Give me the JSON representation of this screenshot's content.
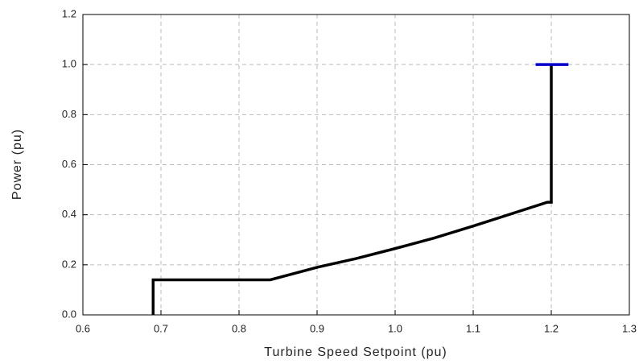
{
  "chart_data": {
    "type": "line",
    "xlabel": "Turbine Speed Setpoint (pu)",
    "ylabel": "Power (pu)",
    "xlim": [
      0.6,
      1.3
    ],
    "ylim": [
      0,
      1.2
    ],
    "xticks": [
      0.6,
      0.7,
      0.8,
      0.9,
      {
        "value": 1,
        "label": "1.0"
      },
      1.1,
      1.2,
      1.3
    ],
    "yticks": [
      {
        "value": 0,
        "label": "0.0"
      },
      0.2,
      0.4,
      0.6,
      0.8,
      {
        "value": 1,
        "label": "1.0"
      },
      1.2
    ],
    "grid": true,
    "series": [
      {
        "color": "#000000",
        "x": [
          0.69,
          0.69,
          0.84,
          0.9,
          0.95,
          1.0,
          1.05,
          1.1,
          1.15,
          1.195,
          1.2,
          1.2
        ],
        "values": [
          0,
          0.14,
          0.14,
          0.19,
          0.225,
          0.265,
          0.307,
          0.355,
          0.405,
          0.45,
          0.45,
          1.0
        ]
      },
      {
        "color": "#0000cc",
        "x": [
          1.18,
          1.222
        ],
        "values": [
          1.0,
          1.0
        ]
      }
    ]
  }
}
